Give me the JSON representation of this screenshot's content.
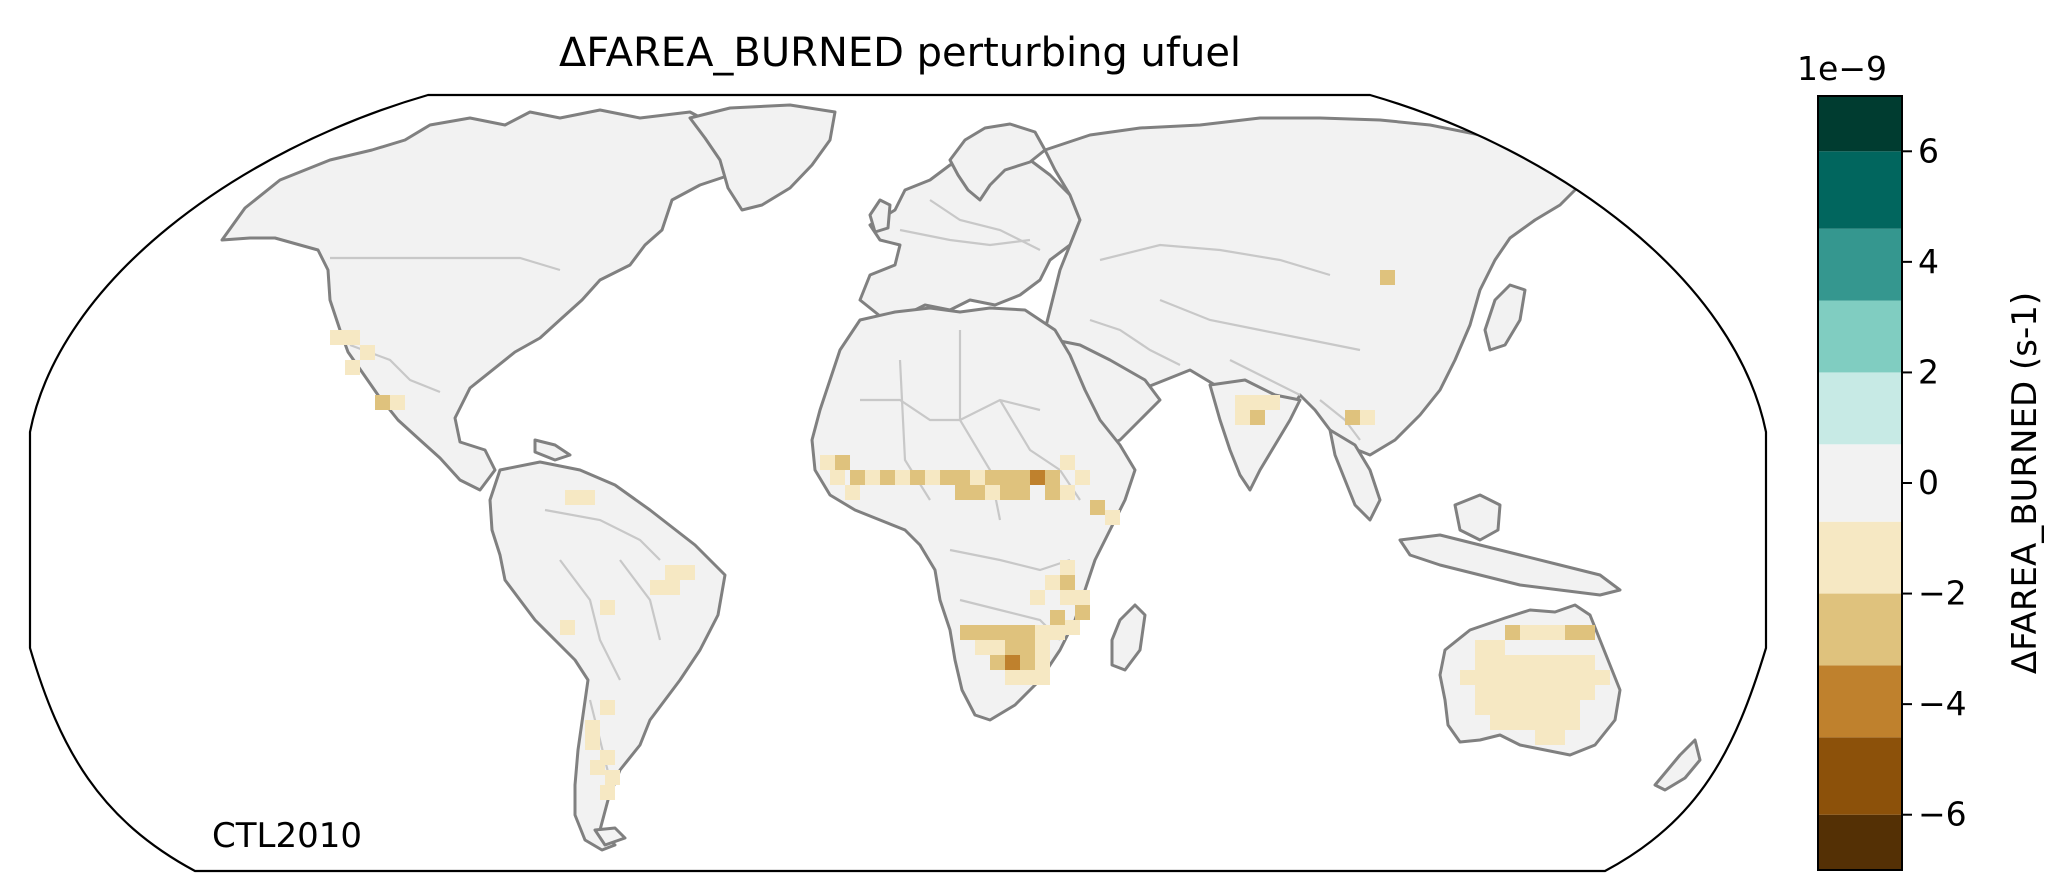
{
  "title": "ΔFAREA_BURNED perturbing ufuel",
  "map_label": "CTL2010",
  "colorbar": {
    "exponent_label": "1e−9",
    "label": "ΔFAREA_BURNED (s-1)",
    "ticks": [
      {
        "value": 6,
        "label": "6"
      },
      {
        "value": 4,
        "label": "4"
      },
      {
        "value": 2,
        "label": "2"
      },
      {
        "value": 0,
        "label": "0"
      },
      {
        "value": -2,
        "label": "−2"
      },
      {
        "value": -4,
        "label": "−4"
      },
      {
        "value": -6,
        "label": "−6"
      }
    ],
    "range": [
      -7,
      7
    ],
    "bins": [
      {
        "from": -7,
        "to": -6,
        "color": "#543005"
      },
      {
        "from": -6,
        "to": -4.6,
        "color": "#8c510a"
      },
      {
        "from": -4.6,
        "to": -3.3,
        "color": "#bf812d"
      },
      {
        "from": -3.3,
        "to": -2,
        "color": "#dfc27d"
      },
      {
        "from": -2,
        "to": -0.7,
        "color": "#f6e8c3"
      },
      {
        "from": -0.7,
        "to": 0.7,
        "color": "#f2f2f2"
      },
      {
        "from": 0.7,
        "to": 2,
        "color": "#c7eae5"
      },
      {
        "from": 2,
        "to": 3.3,
        "color": "#80cdc1"
      },
      {
        "from": 3.3,
        "to": 4.6,
        "color": "#35978f"
      },
      {
        "from": 4.6,
        "to": 6,
        "color": "#01665e"
      },
      {
        "from": 6,
        "to": 7,
        "color": "#003c30"
      }
    ]
  },
  "map": {
    "projection": "Robinson",
    "land_color": "#f2f2f2",
    "coastline_color": "#808080",
    "border_color": "#c8c8c8"
  }
}
